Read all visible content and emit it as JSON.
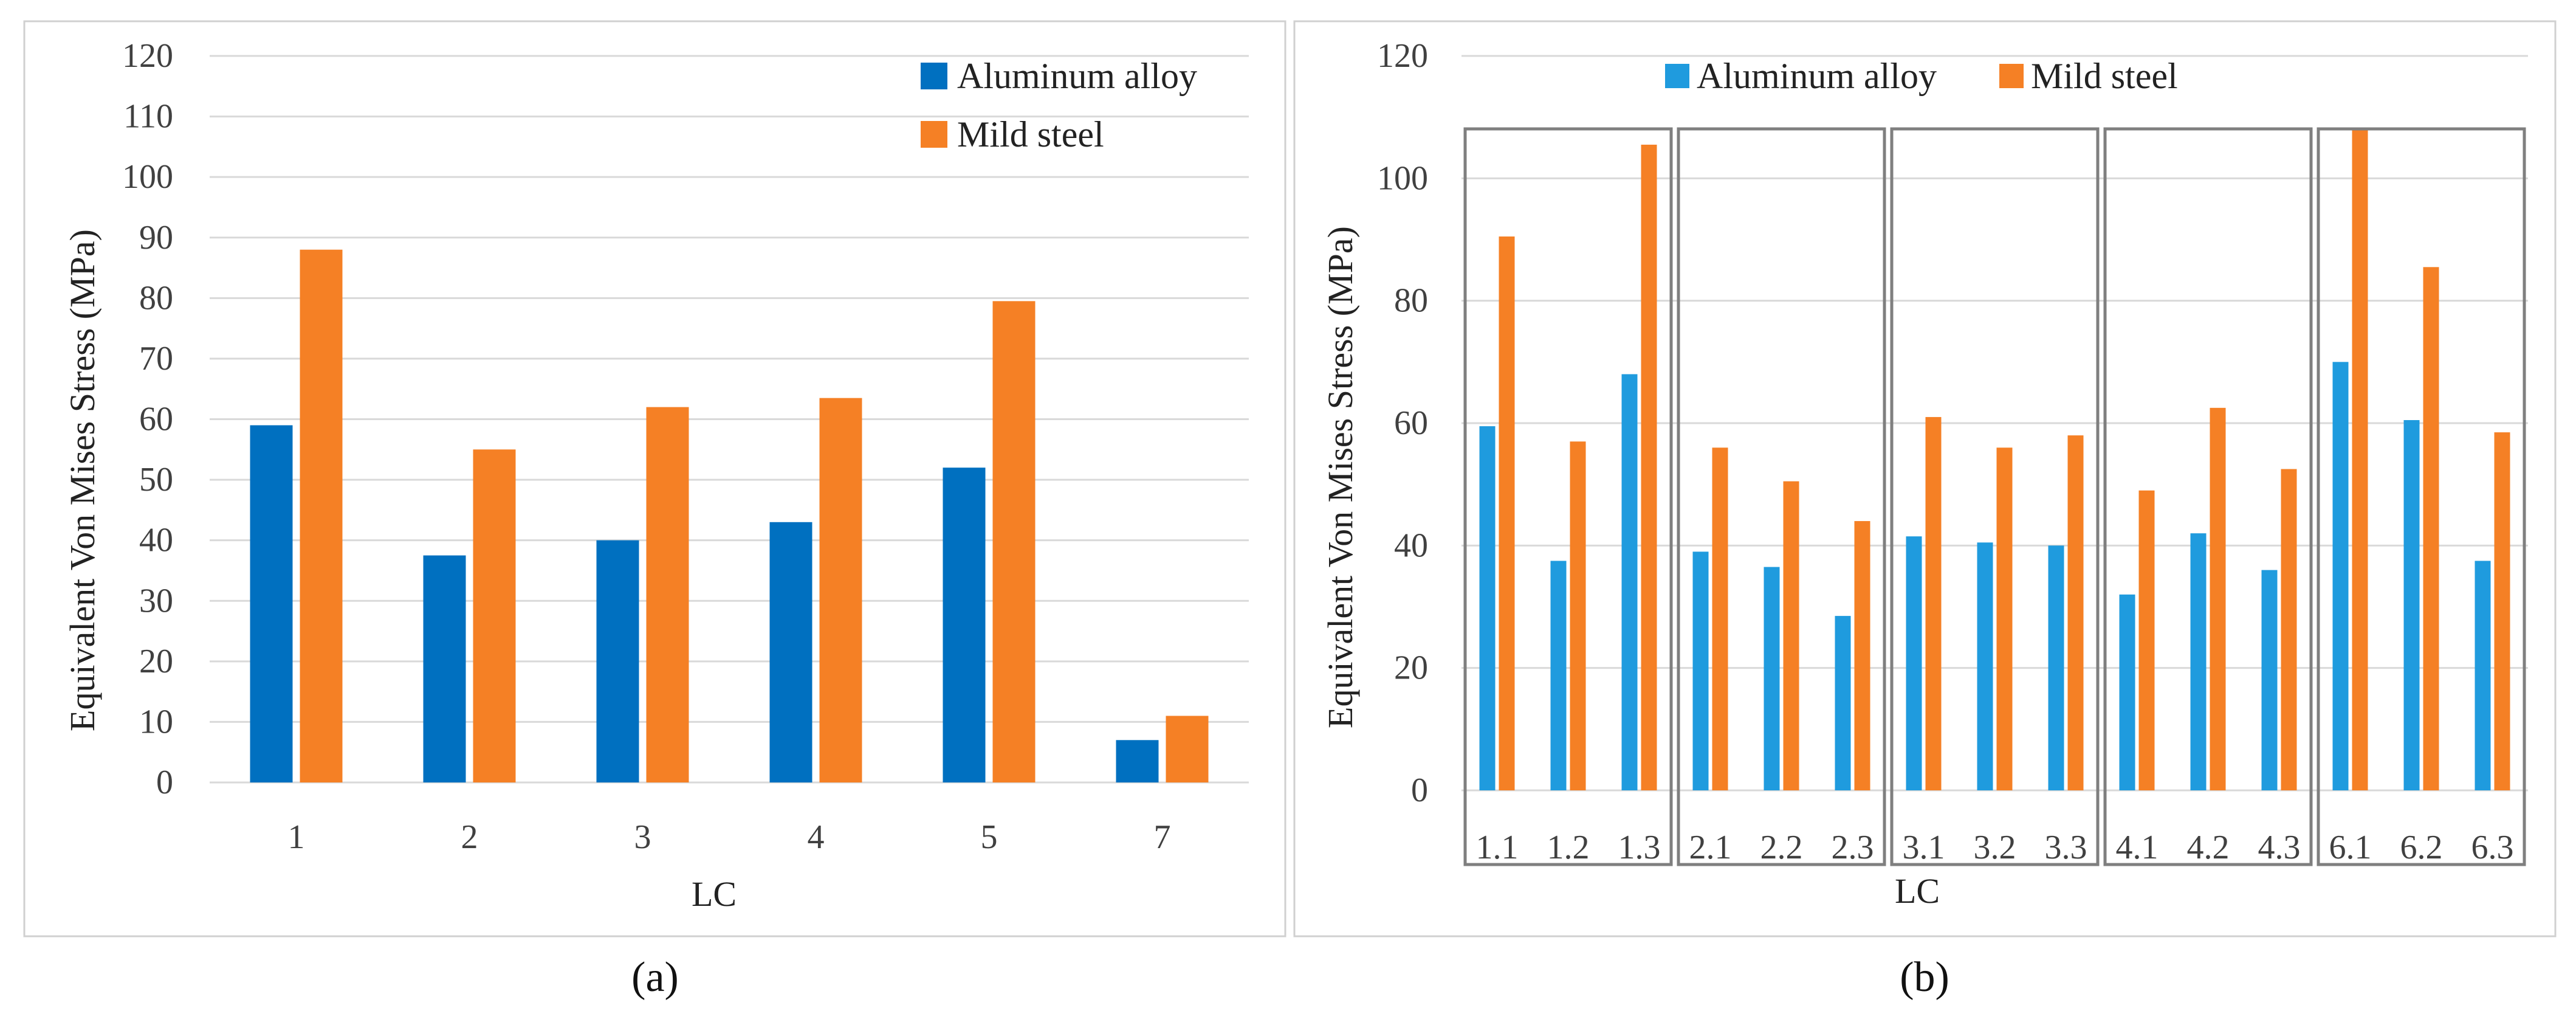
{
  "colors": {
    "a_aluminum": "#0070C0",
    "a_steel": "#F58025",
    "b_aluminum": "#1F9BDE",
    "b_steel": "#F58025",
    "grid": "#D9D9D9",
    "frame": "#D0D0D0",
    "group_box": "#7F7F7F"
  },
  "chart_data": [
    {
      "id": "a",
      "type": "bar",
      "caption": "(a)",
      "xlabel": "LC",
      "ylabel": "Equivalent Von Mises Stress (MPa)",
      "ylim": [
        0,
        120
      ],
      "yticks": [
        "0",
        "10",
        "20",
        "30",
        "40",
        "50",
        "60",
        "70",
        "80",
        "90",
        "100",
        "110",
        "120"
      ],
      "categories": [
        "1",
        "2",
        "3",
        "4",
        "5",
        "7"
      ],
      "grid": true,
      "legend_position": "top-right",
      "legend_layout": "vertical",
      "series": [
        {
          "name": "Aluminum alloy",
          "values": [
            59,
            37.5,
            40,
            43,
            52,
            7
          ]
        },
        {
          "name": "Mild steel",
          "values": [
            88,
            55,
            62,
            63.5,
            79.5,
            11
          ]
        }
      ]
    },
    {
      "id": "b",
      "type": "bar",
      "caption": "(b)",
      "xlabel": "LC",
      "ylabel": "Equivalent Von Mises Stress (MPa)",
      "ylim": [
        0,
        120
      ],
      "yticks": [
        "0",
        "20",
        "40",
        "60",
        "80",
        "100",
        "120"
      ],
      "categories": [
        "1.1",
        "1.2",
        "1.3",
        "2.1",
        "2.2",
        "2.3",
        "3.1",
        "3.2",
        "3.3",
        "4.1",
        "4.2",
        "4.3",
        "6.1",
        "6.2",
        "6.3"
      ],
      "groups": [
        [
          "1.1",
          "1.2",
          "1.3"
        ],
        [
          "2.1",
          "2.2",
          "2.3"
        ],
        [
          "3.1",
          "3.2",
          "3.3"
        ],
        [
          "4.1",
          "4.2",
          "4.3"
        ],
        [
          "6.1",
          "6.2",
          "6.3"
        ]
      ],
      "grid": true,
      "legend_position": "top",
      "legend_layout": "horizontal",
      "series": [
        {
          "name": "Aluminum alloy",
          "values": [
            59.5,
            37.5,
            68,
            39,
            36.5,
            28.5,
            41.5,
            40.5,
            40,
            32,
            42,
            36,
            70,
            60.5,
            37.5
          ]
        },
        {
          "name": "Mild steel",
          "values": [
            90.5,
            57,
            105.5,
            56,
            50.5,
            44,
            61,
            56,
            58,
            49,
            62.5,
            52.5,
            108,
            85.5,
            58.5
          ]
        }
      ]
    }
  ]
}
